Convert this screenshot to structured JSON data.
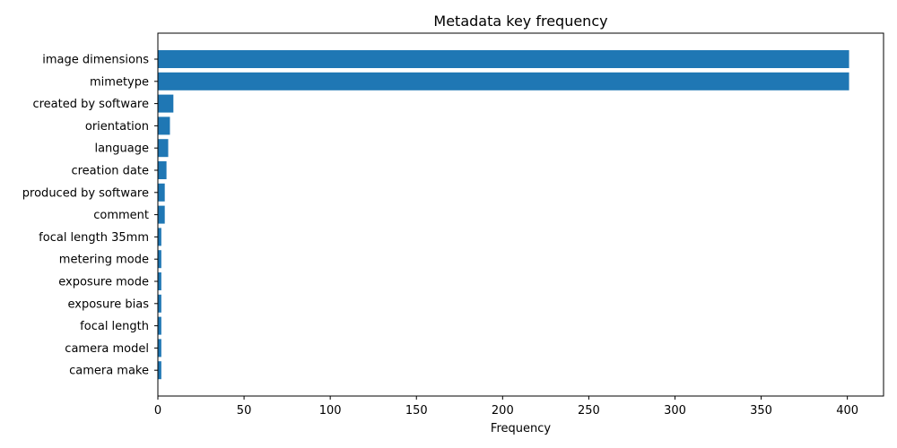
{
  "chart_data": {
    "type": "bar",
    "orientation": "horizontal",
    "title": "Metadata key frequency",
    "xlabel": "Frequency",
    "ylabel": "",
    "xlim": [
      0,
      421
    ],
    "xticks": [
      0,
      50,
      100,
      150,
      200,
      250,
      300,
      350,
      400
    ],
    "grid": false,
    "bar_color": "#1f77b4",
    "categories": [
      "image dimensions",
      "mimetype",
      "created by software",
      "orientation",
      "language",
      "creation date",
      "produced by software",
      "comment",
      "focal length 35mm",
      "metering mode",
      "exposure mode",
      "exposure bias",
      "focal length",
      "camera model",
      "camera make"
    ],
    "values": [
      401,
      401,
      9,
      7,
      6,
      5,
      4,
      4,
      2,
      2,
      2,
      2,
      2,
      2,
      2
    ]
  }
}
